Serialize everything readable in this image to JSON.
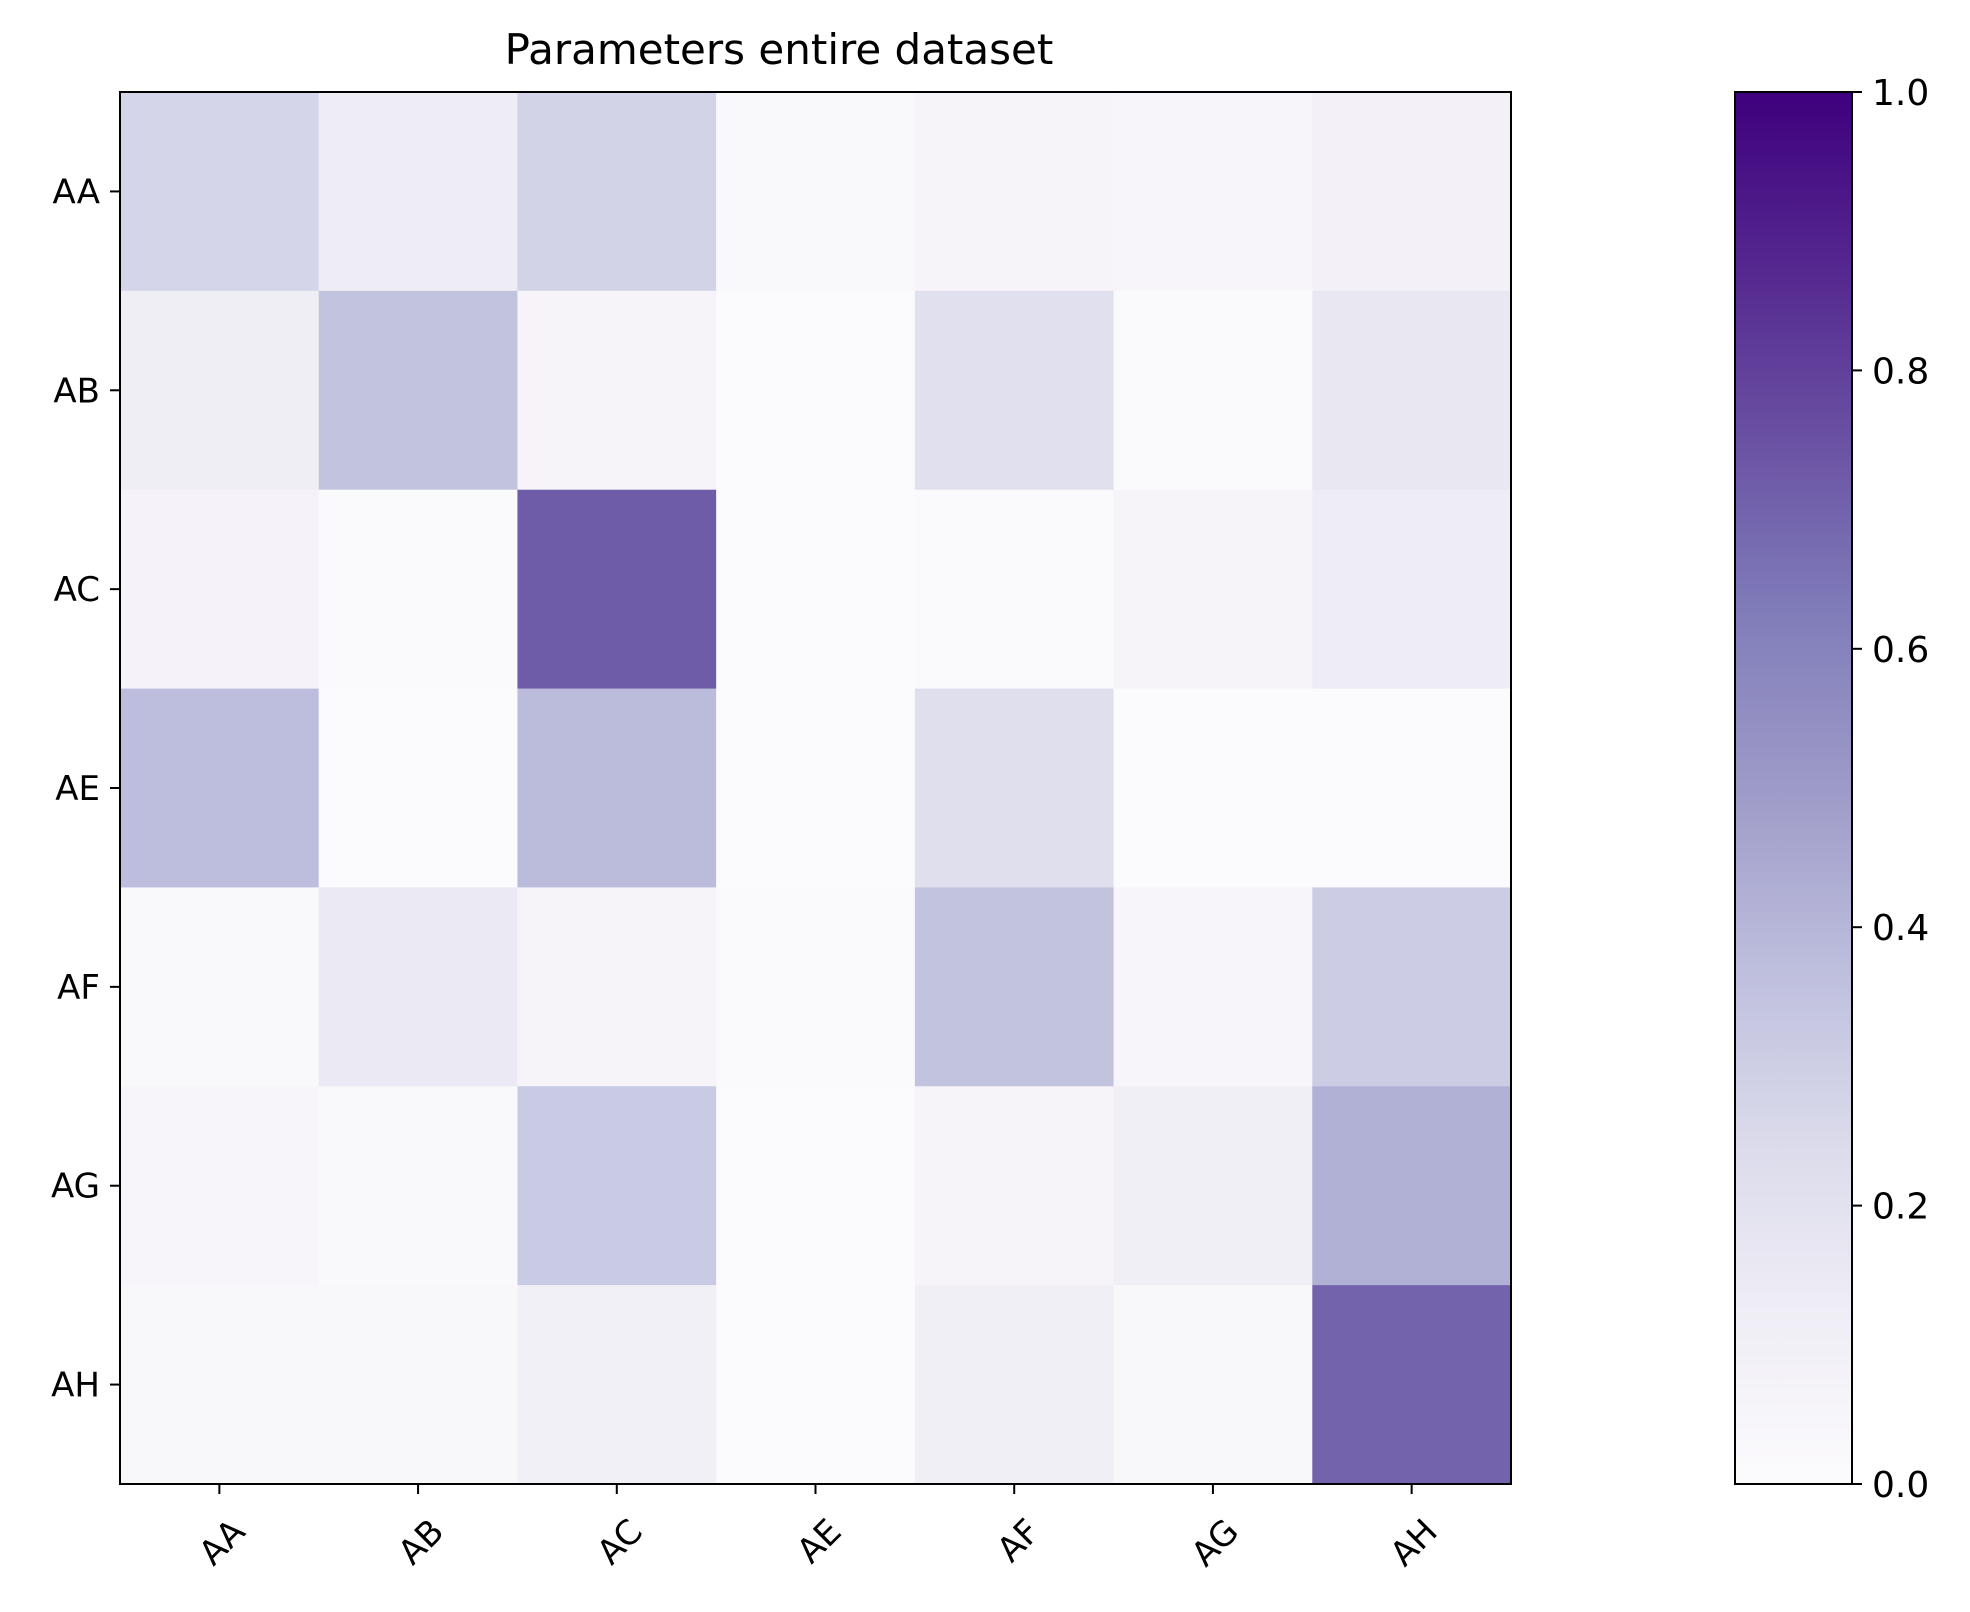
{
  "chart_data": {
    "type": "heatmap",
    "title": "Parameters entire dataset",
    "xlabel": "",
    "ylabel": "",
    "x_categories": [
      "AA",
      "AB",
      "AC",
      "AE",
      "AF",
      "AG",
      "AH"
    ],
    "y_categories": [
      "AA",
      "AB",
      "AC",
      "AE",
      "AF",
      "AG",
      "AH"
    ],
    "values": [
      [
        0.27,
        0.13,
        0.28,
        0.03,
        0.06,
        0.05,
        0.09
      ],
      [
        0.12,
        0.35,
        0.06,
        0.01,
        0.21,
        0.02,
        0.16
      ],
      [
        0.07,
        0.02,
        0.72,
        0.01,
        0.02,
        0.06,
        0.13
      ],
      [
        0.37,
        0.01,
        0.38,
        0.01,
        0.22,
        0.01,
        0.01
      ],
      [
        0.03,
        0.15,
        0.06,
        0.02,
        0.35,
        0.05,
        0.31
      ],
      [
        0.05,
        0.03,
        0.32,
        0.01,
        0.06,
        0.11,
        0.42
      ],
      [
        0.04,
        0.04,
        0.1,
        0.01,
        0.11,
        0.04,
        0.7
      ]
    ],
    "colormap": "Purples",
    "colormap_stops": [
      "#fcfbfd",
      "#efedf5",
      "#dadaeb",
      "#bcbddc",
      "#9e9ac8",
      "#807dba",
      "#6a51a3",
      "#54278f",
      "#3f007d"
    ],
    "colorbar": {
      "range": [
        0.0,
        1.0
      ],
      "ticks": [
        "0.0",
        "0.2",
        "0.4",
        "0.6",
        "0.8",
        "1.0"
      ]
    },
    "x_tick_rotation": 45
  }
}
